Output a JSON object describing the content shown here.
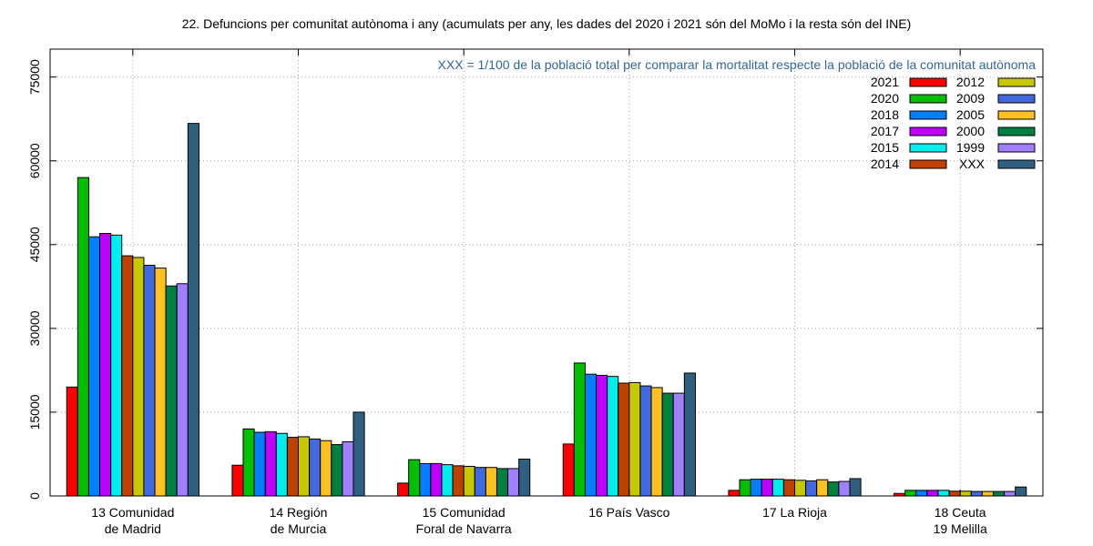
{
  "chart_data": {
    "type": "bar",
    "title": "22. Defuncions per comunitat autònoma i any (acumulats per any, les dades del 2020 i 2021 són del MoMo i la resta són del INE)",
    "annotation": "XXX = 1/100 de la població total per comparar la mortalitat respecte la població de la comunitat autònoma",
    "ylim": [
      0,
      80000
    ],
    "yticks": [
      "0",
      "15000",
      "30000",
      "45000",
      "60000",
      "75000"
    ],
    "ytick_values": [
      0,
      15000,
      30000,
      45000,
      60000,
      75000
    ],
    "grid": true,
    "legend_position": "top-right",
    "categories": [
      [
        "13 Comunidad",
        "de Madrid"
      ],
      [
        "14 Región",
        "de Murcia"
      ],
      [
        "15 Comunidad",
        "Foral de Navarra"
      ],
      [
        "16 País Vasco"
      ],
      [
        "17 La Rioja"
      ],
      [
        "18 Ceuta",
        "19 Melilla"
      ]
    ],
    "series": [
      {
        "name": "2021",
        "color": "#ff0000",
        "values": [
          19500,
          5500,
          2300,
          9300,
          1000,
          450
        ]
      },
      {
        "name": "2020",
        "color": "#00c000",
        "values": [
          57000,
          12000,
          6500,
          23800,
          2900,
          1000
        ]
      },
      {
        "name": "2018",
        "color": "#0080ff",
        "values": [
          46400,
          11400,
          5800,
          21800,
          3000,
          1000
        ]
      },
      {
        "name": "2017",
        "color": "#c000ff",
        "values": [
          47000,
          11500,
          5800,
          21600,
          3000,
          1000
        ]
      },
      {
        "name": "2015",
        "color": "#00eeee",
        "values": [
          46700,
          11200,
          5600,
          21400,
          3000,
          1000
        ]
      },
      {
        "name": "2014",
        "color": "#c04000",
        "values": [
          43000,
          10500,
          5400,
          20200,
          2900,
          850
        ]
      },
      {
        "name": "2012",
        "color": "#c8c800",
        "values": [
          42700,
          10600,
          5300,
          20300,
          2800,
          850
        ]
      },
      {
        "name": "2009",
        "color": "#4169e1",
        "values": [
          41300,
          10200,
          5100,
          19700,
          2700,
          800
        ]
      },
      {
        "name": "2005",
        "color": "#ffc020",
        "values": [
          40800,
          9900,
          5100,
          19400,
          2900,
          800
        ]
      },
      {
        "name": "2000",
        "color": "#008040",
        "values": [
          37600,
          9200,
          4900,
          18400,
          2500,
          800
        ]
      },
      {
        "name": "1999",
        "color": "#a080ff",
        "values": [
          38000,
          9700,
          4900,
          18400,
          2600,
          800
        ]
      },
      {
        "name": "XXX",
        "color": "#306080",
        "values": [
          66700,
          15000,
          6600,
          22000,
          3100,
          1600
        ]
      }
    ]
  }
}
